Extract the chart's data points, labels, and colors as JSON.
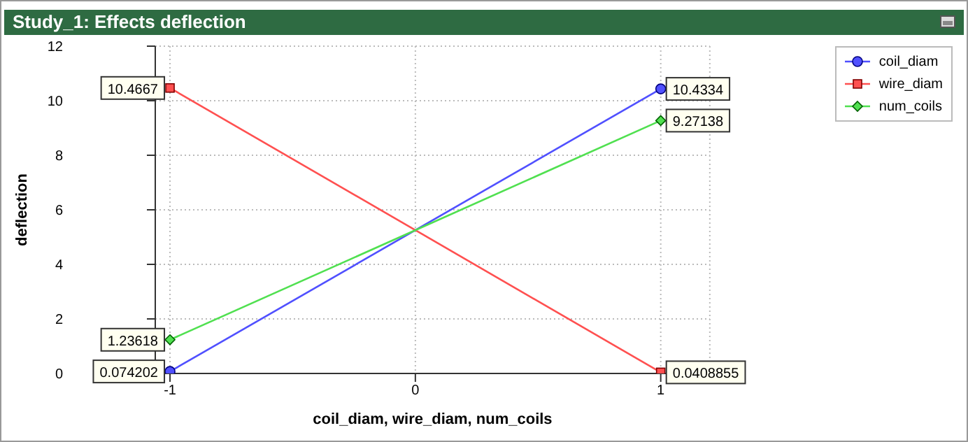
{
  "chart_data": {
    "type": "line",
    "title": "Study_1: Effects deflection",
    "xlabel": "coil_diam, wire_diam, num_coils",
    "ylabel": "deflection",
    "x": [
      -1,
      1
    ],
    "series": [
      {
        "name": "coil_diam",
        "color": "#5050ff",
        "values": [
          0.074202,
          10.4334
        ],
        "marker": "circle"
      },
      {
        "name": "wire_diam",
        "color": "#ff5050",
        "values": [
          10.4667,
          0.0408855
        ],
        "marker": "square"
      },
      {
        "name": "num_coils",
        "color": "#50e050",
        "values": [
          1.23618,
          9.27138
        ],
        "marker": "diamond"
      }
    ],
    "xlim": [
      -1.06,
      1.2
    ],
    "xticks": [
      -1,
      0,
      1
    ],
    "ylim": [
      0,
      12
    ],
    "yticks": [
      0,
      2,
      4,
      6,
      8,
      10,
      12
    ],
    "grid": true,
    "legend": "top right",
    "data_labels": true,
    "line_style": "solid"
  }
}
